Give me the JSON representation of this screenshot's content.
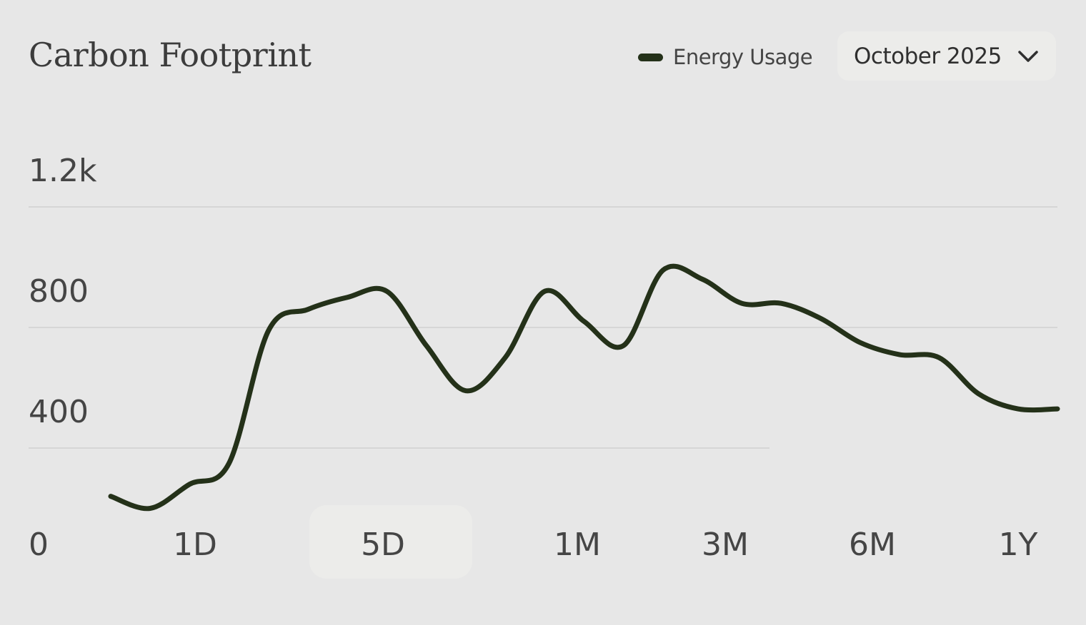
{
  "header": {
    "title": "Carbon Footprint",
    "legend_label": "Energy Usage",
    "month_select": {
      "value": "October 2025",
      "icon": "chevron-down-icon"
    }
  },
  "colors": {
    "background": "#e7e7e7",
    "line": "#243119",
    "grid": "#d6d6d6",
    "selected_range_bg": "#ececea"
  },
  "range_selector": {
    "origin_label": "0",
    "options": [
      "1D",
      "5D",
      "1M",
      "3M",
      "6M",
      "1Y"
    ],
    "selected": "5D"
  },
  "chart_data": {
    "type": "line",
    "title": "Carbon Footprint",
    "y_tick_labels": [
      "400",
      "800",
      "1.2k"
    ],
    "y_ticks": [
      400,
      800,
      1200
    ],
    "ylim": [
      0,
      1400
    ],
    "grid": true,
    "legend": "top-right",
    "series": [
      {
        "name": "Energy Usage",
        "x": [
          1,
          2,
          3,
          4,
          5,
          6,
          7,
          8,
          9,
          10,
          11,
          12,
          13,
          14,
          15,
          16,
          17,
          18,
          19,
          20,
          21,
          22,
          23,
          24,
          25
        ],
        "values": [
          240,
          200,
          280,
          350,
          790,
          860,
          900,
          920,
          740,
          590,
          700,
          920,
          820,
          740,
          990,
          960,
          880,
          880,
          830,
          750,
          710,
          700,
          580,
          530,
          530
        ]
      }
    ]
  }
}
